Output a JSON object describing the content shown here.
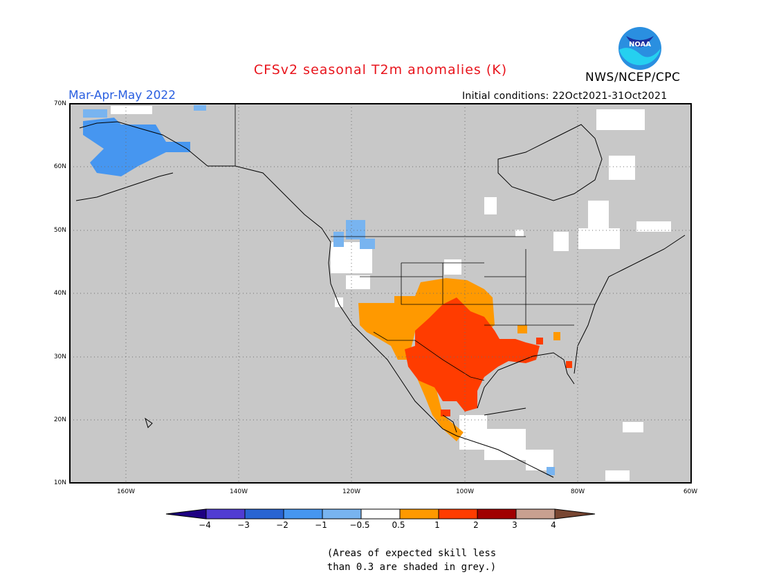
{
  "header": {
    "title": "CFSv2 seasonal T2m anomalies (K)",
    "season": "Mar-Apr-May 2022",
    "initial_conditions": "Initial conditions: 22Oct2021-31Oct2021",
    "agency": "NWS/NCEP/CPC",
    "logo_text": "NOAA"
  },
  "map": {
    "lat_ticks": [
      "70N",
      "60N",
      "50N",
      "40N",
      "30N",
      "20N",
      "10N"
    ],
    "lon_ticks": [
      "160W",
      "140W",
      "120W",
      "100W",
      "80W",
      "60W"
    ],
    "lat_range": [
      10,
      70
    ],
    "lon_range": [
      -170,
      -60
    ],
    "grid_lats": [
      20,
      30,
      40,
      50,
      60
    ],
    "grid_lons": [
      -160,
      -140,
      -120,
      -100,
      -80
    ],
    "colors": {
      "grey_low_skill": "#c8c8c8",
      "neutral": "#ffffff",
      "cold_0.5_1": "#78b4f0",
      "cold_1_2": "#4696f0",
      "warm_0.5_1": "#ff9900",
      "warm_1_2": "#ff3c00"
    }
  },
  "colorbar": {
    "labels": [
      "−4",
      "−3",
      "−2",
      "−1",
      "−0.5",
      "0.5",
      "1",
      "2",
      "3",
      "4"
    ],
    "colors": [
      "#1e0082",
      "#503cd2",
      "#2864d2",
      "#4696f0",
      "#78b4f0",
      "#ffffff",
      "#ff9900",
      "#ff3c00",
      "#a00000",
      "#c8a090",
      "#784632"
    ]
  },
  "footnote": {
    "line1": "(Areas of expected skill less",
    "line2": "than 0.3 are shaded in grey.)"
  }
}
